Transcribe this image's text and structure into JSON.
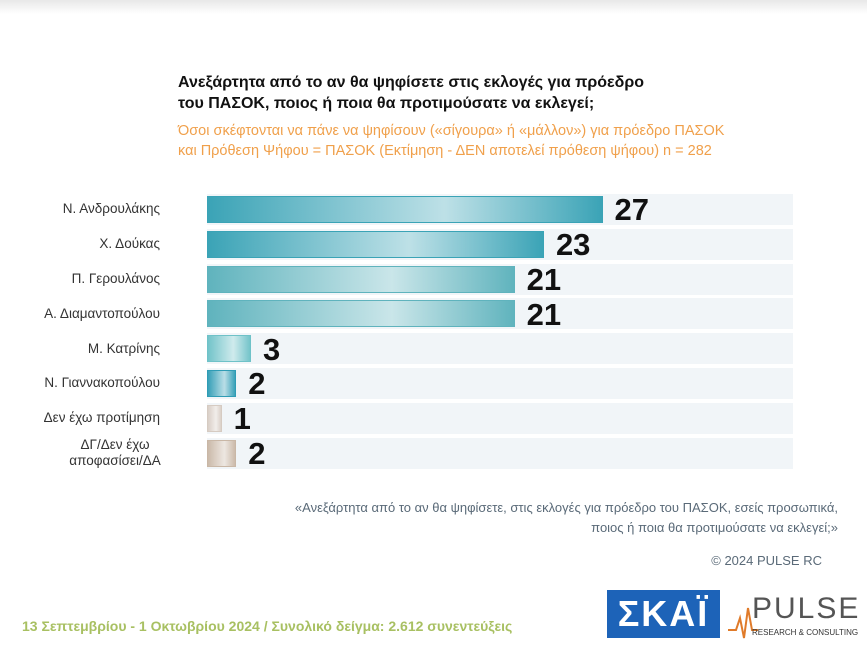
{
  "chart_data": {
    "type": "bar",
    "orientation": "horizontal",
    "title": [
      "Ανεξάρτητα από το αν θα ψηφίσετε στις εκλογές για πρόεδρο",
      "του ΠΑΣΟΚ, ποιος ή ποια θα προτιμούσατε να εκλεγεί;"
    ],
    "subtitle": [
      "Όσοι σκέφτονται να πάνε να ψηφίσουν («σίγουρα» ή «μάλλον») για πρόεδρο ΠΑΣΟΚ",
      "και Πρόθεση Ψήφου = ΠΑΣΟΚ (Εκτίμηση - ΔΕΝ αποτελεί πρόθεση ψήφου)   n = 282"
    ],
    "categories": [
      "Ν. Ανδρουλάκης",
      "Χ. Δούκας",
      "Π. Γερουλάνος",
      "Α. Διαμαντοπούλου",
      "Μ. Κατρίνης",
      "Ν. Γιαννακοπούλου",
      "Δεν έχω προτίμηση",
      "ΔΓ/Δεν έχω αποφασίσει/ΔΑ"
    ],
    "values": [
      27,
      23,
      21,
      21,
      3,
      2,
      1,
      2
    ],
    "colors": [
      "#3aa3b6",
      "#3aa3b6",
      "#5fb3bd",
      "#5fb3bd",
      "#6fc2c8",
      "#2f9cb5",
      "#d6cbc2",
      "#c9b7a6"
    ],
    "xlim": [
      0,
      40
    ],
    "footnote": [
      "«Ανεξάρτητα από το αν θα ψηφίσετε, στις εκλογές για πρόεδρο του ΠΑΣΟΚ, εσείς προσωπικά,",
      "ποιος ή ποια θα προτιμούσατε να εκλεγεί;»"
    ],
    "copyright": "© 2024 PULSE RC",
    "fieldwork": "13 Σεπτεμβρίου - 1 Οκτωβρίου 2024  /  Συνολικό δείγμα:  2.612 συνεντεύξεις",
    "logo_skai": "ΣΚΑΪ",
    "logo_pulse": "PULSE",
    "logo_pulse_sub": "RESEARCH & CONSULTING"
  }
}
